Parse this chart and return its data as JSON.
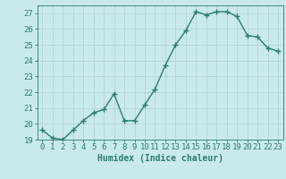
{
  "title": "",
  "xlabel": "Humidex (Indice chaleur)",
  "ylabel": "",
  "x": [
    0,
    1,
    2,
    3,
    4,
    5,
    6,
    7,
    8,
    9,
    10,
    11,
    12,
    13,
    14,
    15,
    16,
    17,
    18,
    19,
    20,
    21,
    22,
    23
  ],
  "y": [
    19.6,
    19.1,
    19.0,
    19.6,
    20.2,
    20.7,
    20.9,
    21.9,
    20.2,
    20.2,
    21.2,
    22.2,
    23.7,
    25.0,
    25.9,
    27.1,
    26.9,
    27.1,
    27.1,
    26.8,
    25.6,
    25.5,
    24.8,
    24.6
  ],
  "line_color": "#2d7d6e",
  "marker": "+",
  "marker_size": 4,
  "bg_color": "#c8eaea",
  "grid_color": "#b8d8d8",
  "tick_color": "#2d7d6e",
  "label_color": "#2d7d6e",
  "ylim": [
    19,
    27.5
  ],
  "yticks": [
    19,
    20,
    21,
    22,
    23,
    24,
    25,
    26,
    27
  ],
  "xlim": [
    -0.5,
    23.5
  ],
  "xticks": [
    0,
    1,
    2,
    3,
    4,
    5,
    6,
    7,
    8,
    9,
    10,
    11,
    12,
    13,
    14,
    15,
    16,
    17,
    18,
    19,
    20,
    21,
    22,
    23
  ],
  "xlabel_fontsize": 7,
  "tick_fontsize": 6.5,
  "line_width": 1.0,
  "marker_color": "#2d7d6e"
}
